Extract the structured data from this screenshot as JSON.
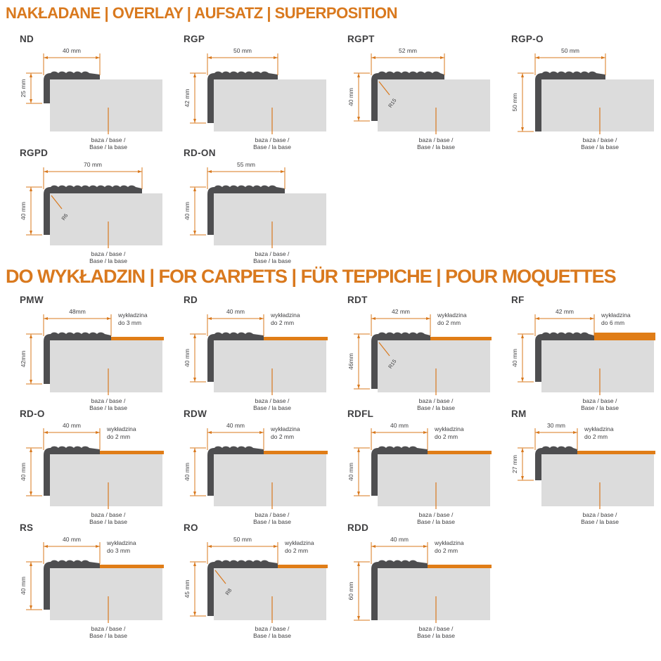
{
  "colors": {
    "accent": "#d9791e",
    "carpet_strip": "#e07d17",
    "profile_fill": "#4e4e50",
    "base_fill": "#dcdcdc",
    "text_dark": "#3f3f41"
  },
  "labels": {
    "base_line1": "baza / base /",
    "base_line2": "Base / la base",
    "carpet_word": "wykładzina"
  },
  "sections": [
    {
      "header": "NAKŁADANE | OVERLAY | AUFSATZ | SUPERPOSITION",
      "rows": [
        [
          {
            "title": "ND",
            "width_label": "40 mm",
            "width_mm": 40,
            "height_label": "25 mm",
            "height_mm": 25
          },
          {
            "title": "RGP",
            "width_label": "50 mm",
            "width_mm": 50,
            "height_label": "42 mm",
            "height_mm": 42
          },
          {
            "title": "RGPT",
            "width_label": "52 mm",
            "width_mm": 52,
            "height_label": "40 mm",
            "height_mm": 40,
            "radius": "R15"
          },
          {
            "title": "RGP-O",
            "width_label": "50 mm",
            "width_mm": 50,
            "height_label": "50 mm",
            "height_mm": 50
          }
        ],
        [
          {
            "title": "RGPD",
            "width_label": "70 mm",
            "width_mm": 70,
            "height_label": "40 mm",
            "height_mm": 40,
            "radius": "R6"
          },
          {
            "title": "RD-ON",
            "width_label": "55 mm",
            "width_mm": 55,
            "height_label": "40 mm",
            "height_mm": 40
          }
        ]
      ]
    },
    {
      "header": "DO WYKŁADZIN | FOR CARPETS | FÜR TEPPICHE | POUR MOQUETTES",
      "rows": [
        [
          {
            "title": "PMW",
            "width_label": "48mm",
            "width_mm": 48,
            "height_label": "42mm",
            "height_mm": 42,
            "carpet": {
              "line2": "do 3 mm",
              "mm": 3
            }
          },
          {
            "title": "RD",
            "width_label": "40 mm",
            "width_mm": 40,
            "height_label": "40 mm",
            "height_mm": 40,
            "carpet": {
              "line2": "do 2 mm",
              "mm": 2
            }
          },
          {
            "title": "RDT",
            "width_label": "42 mm",
            "width_mm": 42,
            "height_label": "46mm",
            "height_mm": 46,
            "radius": "R15",
            "carpet": {
              "line2": "do 2 mm",
              "mm": 2
            }
          },
          {
            "title": "RF",
            "width_label": "42 mm",
            "width_mm": 42,
            "height_label": "40 mm",
            "height_mm": 40,
            "carpet": {
              "line2": "do 6 mm",
              "mm": 6
            }
          }
        ],
        [
          {
            "title": "RD-O",
            "width_label": "40 mm",
            "width_mm": 40,
            "height_label": "40 mm",
            "height_mm": 40,
            "carpet": {
              "line2": "do 2 mm",
              "mm": 2
            }
          },
          {
            "title": "RDW",
            "width_label": "40 mm",
            "width_mm": 40,
            "height_label": "40 mm",
            "height_mm": 40,
            "carpet": {
              "line2": "do 2 mm",
              "mm": 2
            }
          },
          {
            "title": "RDFL",
            "width_label": "40 mm",
            "width_mm": 40,
            "height_label": "40 mm",
            "height_mm": 40,
            "carpet": {
              "line2": "do 2 mm",
              "mm": 2
            }
          },
          {
            "title": "RM",
            "width_label": "30 mm",
            "width_mm": 30,
            "height_label": "27 mm",
            "height_mm": 27,
            "carpet": {
              "line2": "do 2 mm",
              "mm": 2
            }
          }
        ],
        [
          {
            "title": "RS",
            "width_label": "40 mm",
            "width_mm": 40,
            "height_label": "40 mm",
            "height_mm": 40,
            "carpet": {
              "line2": "do 3 mm",
              "mm": 3
            }
          },
          {
            "title": "RO",
            "width_label": "50 mm",
            "width_mm": 50,
            "height_label": "45 mm",
            "height_mm": 45,
            "radius": "R8",
            "carpet": {
              "line2": "do 2 mm",
              "mm": 2
            }
          },
          {
            "title": "RDD",
            "width_label": "40 mm",
            "width_mm": 40,
            "height_label": "60 mm",
            "height_mm": 60,
            "carpet": {
              "line2": "do 2 mm",
              "mm": 2
            }
          }
        ]
      ]
    }
  ]
}
